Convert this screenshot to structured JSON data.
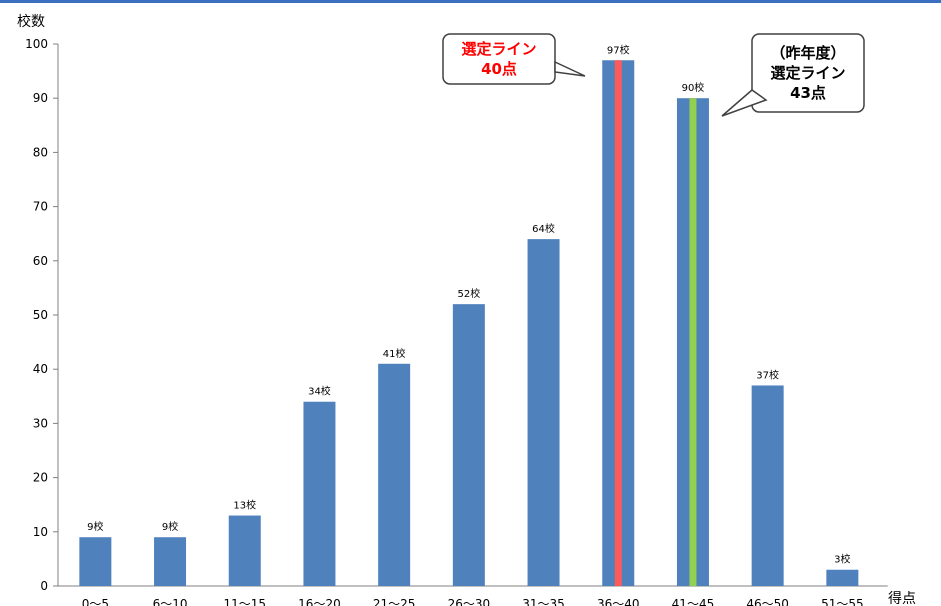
{
  "chart_data": {
    "type": "bar",
    "ylabel": "校数",
    "xlabel": "得点",
    "ylim": [
      0,
      100
    ],
    "yticks": [
      0,
      10,
      20,
      30,
      40,
      50,
      60,
      70,
      80,
      90,
      100
    ],
    "categories": [
      "0～5",
      "6～10",
      "11～15",
      "16～20",
      "21～25",
      "26～30",
      "31～35",
      "36～40",
      "41～45",
      "46～50",
      "51～55"
    ],
    "values": [
      9,
      9,
      13,
      34,
      41,
      52,
      64,
      97,
      90,
      37,
      3
    ],
    "value_labels": [
      "9校",
      "9校",
      "13校",
      "34校",
      "41校",
      "52校",
      "64校",
      "97校",
      "90校",
      "37校",
      "3校"
    ],
    "bar_color": "#4f81bd",
    "grid": false,
    "highlights": [
      {
        "category_index": 7,
        "color": "#ff5a5a"
      },
      {
        "category_index": 8,
        "color": "#92d050"
      }
    ],
    "callouts": [
      {
        "lines": [
          "選定ライン",
          "40点"
        ],
        "text_color": "#ff0000",
        "category_index": 7
      },
      {
        "lines": [
          "（昨年度）",
          "選定ライン",
          "43点"
        ],
        "text_color": "#000000",
        "category_index": 8
      }
    ]
  }
}
